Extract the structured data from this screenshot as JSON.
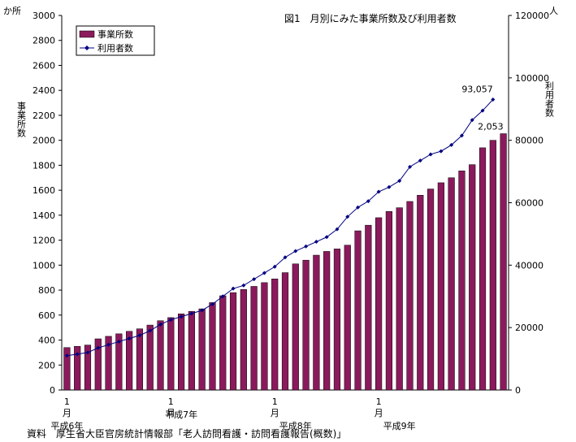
{
  "chart_data": {
    "type": "bar+line",
    "title": "図1　月別にみた事業所数及び利用者数",
    "left_axis": {
      "unit": "か所",
      "label": "事業所数",
      "ylim": [
        0,
        3000
      ],
      "step": 200,
      "ticks": [
        "0",
        "200",
        "400",
        "600",
        "800",
        "1000",
        "1200",
        "1400",
        "1600",
        "1800",
        "2000",
        "2200",
        "2400",
        "2600",
        "2800",
        "3000"
      ]
    },
    "right_axis": {
      "unit": "人",
      "label": "利用者数",
      "ylim": [
        0,
        120000
      ],
      "step": 20000,
      "ticks": [
        "0",
        "20000",
        "40000",
        "60000",
        "80000",
        "100000",
        "120000"
      ]
    },
    "x_axis": {
      "month_labels": [
        {
          "index": 0,
          "text": "1"
        },
        {
          "index": 0,
          "text": "月"
        },
        {
          "index": 10,
          "text": "1"
        },
        {
          "index": 10,
          "text": "月"
        },
        {
          "index": 20,
          "text": "1"
        },
        {
          "index": 20,
          "text": "月"
        },
        {
          "index": 30,
          "text": "1"
        },
        {
          "index": 30,
          "text": "月"
        }
      ],
      "year_labels": [
        {
          "index": 0,
          "text": "平成6年"
        },
        {
          "index": 11,
          "text": "平成7年"
        },
        {
          "index": 22,
          "text": "平成8年"
        },
        {
          "index": 32,
          "text": "平成9年"
        }
      ]
    },
    "legend": {
      "position": "top-left",
      "items": [
        {
          "name": "事業所数",
          "kind": "bar",
          "color": "#8B1A5C"
        },
        {
          "name": "利用者数",
          "kind": "line",
          "color": "#000080"
        }
      ]
    },
    "series": [
      {
        "name": "事業所数",
        "type": "bar",
        "axis": "left",
        "color": "#8B1A5C",
        "values": [
          340,
          350,
          360,
          410,
          430,
          450,
          470,
          490,
          520,
          555,
          580,
          610,
          630,
          650,
          700,
          755,
          780,
          805,
          830,
          860,
          890,
          940,
          1010,
          1040,
          1080,
          1110,
          1130,
          1160,
          1275,
          1320,
          1380,
          1430,
          1460,
          1510,
          1560,
          1610,
          1660,
          1700,
          1755,
          1805,
          1940,
          2000,
          2053
        ]
      },
      {
        "name": "利用者数",
        "type": "line",
        "axis": "right",
        "color": "#000080",
        "values": [
          11000,
          11500,
          12000,
          13500,
          14500,
          15500,
          16500,
          17500,
          19000,
          21000,
          22500,
          23500,
          24500,
          25500,
          27500,
          30000,
          32500,
          33500,
          35500,
          37500,
          39500,
          42500,
          44500,
          46000,
          47500,
          49000,
          51500,
          55500,
          58500,
          60500,
          63500,
          65000,
          67000,
          71500,
          73500,
          75500,
          76500,
          78500,
          81500,
          86500,
          89500,
          93057
        ]
      },
      {
        "annotations": [
          {
            "series": "利用者数",
            "index": 41,
            "text": "93,057"
          },
          {
            "series": "事業所数",
            "index": 42,
            "text": "2,053"
          }
        ]
      }
    ]
  },
  "source": "資料　厚生省大臣官房統計情報部「老人訪問看護・訪問看護報告(概数)」"
}
